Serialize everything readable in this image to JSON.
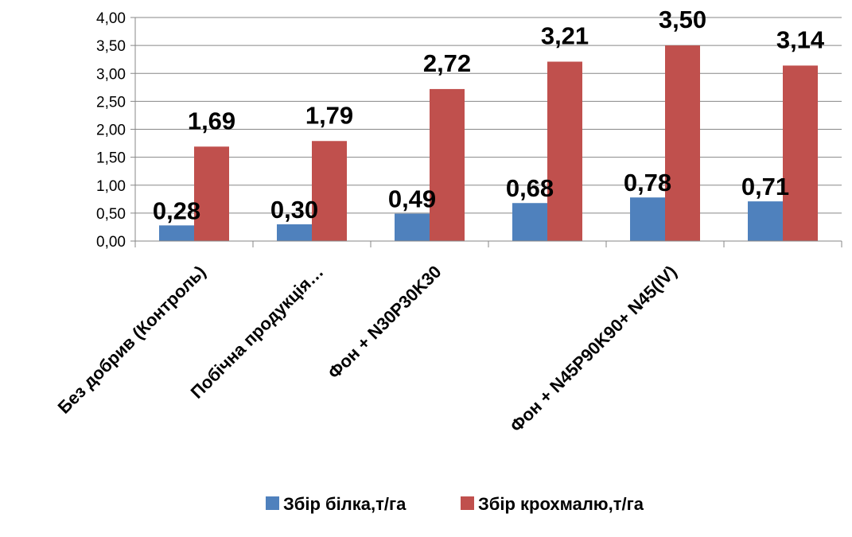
{
  "chart_data": {
    "type": "bar",
    "categories": [
      "Без добрив (Контроль)",
      "Побічна продукція…",
      "Фон + N30P30K30",
      "",
      "Фон + N45P90K90+ N45(IV)",
      ""
    ],
    "series": [
      {
        "name": "Збір білка,т/га",
        "values": [
          0.28,
          0.3,
          0.49,
          0.68,
          0.78,
          0.71
        ],
        "labels": [
          "0,28",
          "0,30",
          "0,49",
          "0,68",
          "0,78",
          "0,71"
        ],
        "color": "#4F81BD"
      },
      {
        "name": "Збір крохмалю,т/га",
        "values": [
          1.69,
          1.79,
          2.72,
          3.21,
          3.5,
          3.14
        ],
        "labels": [
          "1,69",
          "1,79",
          "2,72",
          "3,21",
          "3,50",
          "3,14"
        ],
        "color": "#C0504D"
      }
    ],
    "y_ticks": [
      "0,00",
      "0,50",
      "1,00",
      "1,50",
      "2,00",
      "2,50",
      "3,00",
      "3,50",
      "4,00"
    ],
    "ylim": [
      0,
      4
    ],
    "title": "",
    "xlabel": "",
    "ylabel": "",
    "grid": true,
    "legend": "bottom"
  }
}
